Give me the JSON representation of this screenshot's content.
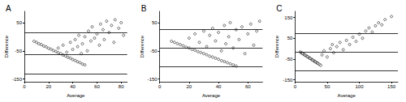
{
  "chart_data": [
    {
      "type": "scatter",
      "title": "A",
      "x_label": "Average",
      "y_label": "Difference",
      "color": "#000000",
      "marker": "circle",
      "grid": false,
      "xlim": [
        0,
        85
      ],
      "xticks": [
        0,
        20,
        40,
        60,
        80
      ],
      "ylim": [
        -160,
        90
      ],
      "yticks": [
        -150,
        -50,
        50
      ],
      "reference_lines": [
        14,
        -62,
        -133
      ],
      "x": [
        8,
        10,
        12,
        14,
        16,
        18,
        20,
        22,
        24,
        26,
        28,
        30,
        32,
        34,
        36,
        38,
        40,
        42,
        44,
        46,
        48,
        50,
        28,
        32,
        35,
        38,
        40,
        42,
        44,
        45,
        47,
        48,
        50,
        52,
        53,
        55,
        56,
        58,
        60,
        62,
        63,
        65,
        66,
        68,
        70,
        72,
        74,
        75,
        78,
        80,
        82
      ],
      "values": [
        -16,
        -20,
        -25,
        -28,
        -33,
        -36,
        -41,
        -44,
        -49,
        -52,
        -57,
        -60,
        -65,
        -68,
        -73,
        -76,
        -81,
        -84,
        -89,
        -92,
        -97,
        -100,
        -40,
        -30,
        -55,
        -20,
        -45,
        -10,
        -35,
        5,
        -60,
        -25,
        0,
        -50,
        20,
        -15,
        35,
        -5,
        10,
        -30,
        45,
        25,
        -10,
        55,
        15,
        40,
        -20,
        60,
        30,
        50,
        5
      ]
    },
    {
      "type": "scatter",
      "title": "B",
      "x_label": "Average",
      "y_label": "Difference",
      "color": "#000000",
      "marker": "circle",
      "grid": false,
      "xlim": [
        0,
        70
      ],
      "xticks": [
        0,
        20,
        40,
        60
      ],
      "ylim": [
        -160,
        90
      ],
      "yticks": [
        -150,
        -50,
        50
      ],
      "reference_lines": [
        25,
        -40,
        -105
      ],
      "x": [
        8,
        10,
        12,
        14,
        16,
        18,
        20,
        22,
        24,
        26,
        28,
        30,
        32,
        34,
        36,
        38,
        40,
        42,
        44,
        46,
        48,
        50,
        52,
        20,
        24,
        27,
        30,
        32,
        34,
        36,
        38,
        40,
        42,
        44,
        45,
        47,
        48,
        50,
        52,
        54,
        56,
        58,
        60,
        62,
        64,
        66,
        68
      ],
      "values": [
        -16,
        -20,
        -24,
        -28,
        -32,
        -37,
        -40,
        -45,
        -48,
        -53,
        -56,
        -60,
        -64,
        -69,
        -72,
        -76,
        -80,
        -85,
        -88,
        -92,
        -96,
        -100,
        -104,
        -5,
        10,
        -20,
        20,
        -35,
        5,
        30,
        -15,
        15,
        -50,
        40,
        -25,
        0,
        50,
        -40,
        25,
        -10,
        35,
        -60,
        10,
        45,
        -30,
        20,
        55
      ]
    },
    {
      "type": "scatter",
      "title": "C",
      "x_label": "Average",
      "y_label": "Difference",
      "color": "#000000",
      "marker": "circle",
      "grid": false,
      "xlim": [
        0,
        160
      ],
      "xticks": [
        0,
        50,
        100,
        150
      ],
      "ylim": [
        -160,
        180
      ],
      "yticks": [
        -150,
        -50,
        50,
        150
      ],
      "reference_lines": [
        75,
        -15,
        -105
      ],
      "x": [
        8,
        10,
        11,
        12,
        14,
        15,
        16,
        18,
        19,
        20,
        22,
        23,
        24,
        26,
        27,
        28,
        30,
        31,
        32,
        34,
        35,
        36,
        38,
        40,
        42,
        45,
        50,
        55,
        58,
        60,
        65,
        70,
        75,
        80,
        85,
        90,
        95,
        100,
        105,
        110,
        115,
        120,
        125,
        130,
        135,
        140,
        150
      ],
      "values": [
        -16,
        -20,
        -22,
        -24,
        -28,
        -30,
        -32,
        -36,
        -38,
        -40,
        -44,
        -46,
        -48,
        -52,
        -54,
        -56,
        -60,
        -62,
        -64,
        -68,
        -70,
        -72,
        -76,
        -80,
        -30,
        -10,
        -40,
        0,
        20,
        -20,
        10,
        30,
        -5,
        40,
        20,
        55,
        35,
        70,
        50,
        85,
        100,
        80,
        110,
        125,
        115,
        140,
        155
      ]
    }
  ]
}
